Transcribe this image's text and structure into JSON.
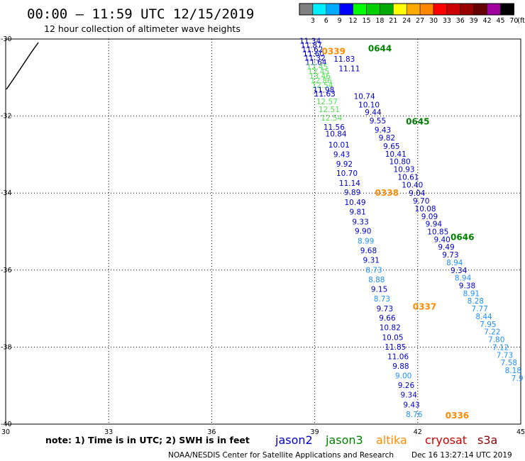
{
  "header": {
    "title": "00:00 — 11:59 UTC 12/15/2019",
    "subtitle": "12 hour collection of altimeter wave heights"
  },
  "color_scale": {
    "colors": [
      "#808080",
      "#00f0ff",
      "#00aaff",
      "#0000ff",
      "#00ff00",
      "#00d000",
      "#00aa00",
      "#ffff00",
      "#ffaa00",
      "#ff8800",
      "#ff0000",
      "#cc0000",
      "#990000",
      "#660000",
      "#a000a0",
      "#000000"
    ],
    "labels": [
      "3",
      "6",
      "9",
      "12",
      "15",
      "18",
      "21",
      "24",
      "27",
      "30",
      "33",
      "36",
      "39",
      "42",
      "45",
      "70"
    ],
    "unit": "(ft)"
  },
  "map": {
    "lon_range": [
      30,
      45
    ],
    "lat_range": [
      -40,
      -30
    ],
    "x_ticks": [
      "30",
      "33",
      "36",
      "39",
      "42",
      "45"
    ],
    "y_ticks": [
      "-30",
      "-32",
      "-34",
      "-36",
      "-38",
      "-40"
    ],
    "grid": true
  },
  "tracks": {
    "A": [
      {
        "lat": -30.05,
        "v": "11.34",
        "c": "#0000cd"
      },
      {
        "lat": -30.16,
        "v": "11.87",
        "c": "#0000cd"
      },
      {
        "lat": -30.27,
        "v": "11.62",
        "c": "#0000cd"
      },
      {
        "lat": -30.38,
        "v": "11.60",
        "c": "#0000cd"
      },
      {
        "lat": -30.49,
        "v": "11.32",
        "c": "#0000cd"
      },
      {
        "lat": -30.6,
        "v": "11.64",
        "c": "#0000cd"
      },
      {
        "lat": -30.72,
        "v": "12.45",
        "c": "#55e055"
      },
      {
        "lat": -30.84,
        "v": "12.45",
        "c": "#55e055"
      },
      {
        "lat": -30.96,
        "v": "13.46",
        "c": "#55e055"
      },
      {
        "lat": -31.08,
        "v": "12.86",
        "c": "#55e055"
      },
      {
        "lat": -31.2,
        "v": "12.54",
        "c": "#55e055"
      },
      {
        "lat": -31.32,
        "v": "11.98",
        "c": "#0000cd"
      },
      {
        "lat": -31.42,
        "v": "11.63",
        "c": "#0000cd"
      },
      {
        "lat": -31.62,
        "v": "12.57",
        "c": "#55e055"
      },
      {
        "lat": -31.82,
        "v": "12.51",
        "c": "#55e055"
      },
      {
        "lat": -32.04,
        "v": "12.54",
        "c": "#55e055"
      },
      {
        "lat": -32.28,
        "v": "11.56",
        "c": "#0000cd"
      },
      {
        "lat": -32.46,
        "v": "10.84",
        "c": "#0000cd"
      },
      {
        "lat": -32.74,
        "v": "10.01",
        "c": "#0000cd"
      },
      {
        "lat": -32.99,
        "v": "9.43",
        "c": "#0000cd"
      },
      {
        "lat": -33.24,
        "v": "9.92",
        "c": "#0000cd"
      },
      {
        "lat": -33.48,
        "v": "10.70",
        "c": "#0000cd"
      },
      {
        "lat": -33.74,
        "v": "11.14",
        "c": "#0000cd"
      },
      {
        "lat": -33.98,
        "v": "9.89",
        "c": "#0000cd"
      },
      {
        "lat": -34.24,
        "v": "10.49",
        "c": "#0000cd"
      },
      {
        "lat": -34.48,
        "v": "9.81",
        "c": "#0000cd"
      },
      {
        "lat": -34.74,
        "v": "9.33",
        "c": "#0000cd"
      },
      {
        "lat": -34.98,
        "v": "9.90",
        "c": "#0000cd"
      },
      {
        "lat": -35.24,
        "v": "8.99",
        "c": "#1e90ff"
      },
      {
        "lat": -35.49,
        "v": "9.68",
        "c": "#0000cd"
      },
      {
        "lat": -35.74,
        "v": "9.31",
        "c": "#0000cd"
      },
      {
        "lat": -35.99,
        "v": "8.73",
        "c": "#1e90ff"
      },
      {
        "lat": -36.24,
        "v": "8.88",
        "c": "#1e90ff"
      },
      {
        "lat": -36.49,
        "v": "9.15",
        "c": "#0000cd"
      },
      {
        "lat": -36.74,
        "v": "8.73",
        "c": "#1e90ff"
      },
      {
        "lat": -37.0,
        "v": "9.73",
        "c": "#0000cd"
      },
      {
        "lat": -37.24,
        "v": "9.66",
        "c": "#0000cd"
      },
      {
        "lat": -37.49,
        "v": "10.82",
        "c": "#0000cd"
      },
      {
        "lat": -37.74,
        "v": "10.05",
        "c": "#0000cd"
      },
      {
        "lat": -37.99,
        "v": "11.85",
        "c": "#0000cd"
      },
      {
        "lat": -38.24,
        "v": "11.06",
        "c": "#0000cd"
      },
      {
        "lat": -38.49,
        "v": "9.88",
        "c": "#0000cd"
      },
      {
        "lat": -38.74,
        "v": "9.00",
        "c": "#1e90ff"
      },
      {
        "lat": -38.99,
        "v": "9.26",
        "c": "#0000cd"
      },
      {
        "lat": -39.24,
        "v": "9.34",
        "c": "#0000cd"
      },
      {
        "lat": -39.49,
        "v": "9.43",
        "c": "#0000cd"
      },
      {
        "lat": -39.74,
        "v": "8.76",
        "c": "#1e90ff"
      }
    ],
    "B": [
      {
        "lat": -30.52,
        "v": "11.83",
        "c": "#0000cd"
      },
      {
        "lat": -30.76,
        "v": "11.11",
        "c": "#0000cd"
      },
      {
        "lat": -31.48,
        "v": "10.74",
        "c": "#0000cd"
      },
      {
        "lat": -31.7,
        "v": "10.10",
        "c": "#0000cd"
      },
      {
        "lat": -31.9,
        "v": "9.44",
        "c": "#0000cd"
      },
      {
        "lat": -32.12,
        "v": "9.55",
        "c": "#0000cd"
      },
      {
        "lat": -32.36,
        "v": "9.43",
        "c": "#0000cd"
      },
      {
        "lat": -32.56,
        "v": "9.82",
        "c": "#0000cd"
      },
      {
        "lat": -32.78,
        "v": "9.65",
        "c": "#0000cd"
      },
      {
        "lat": -32.98,
        "v": "10.41",
        "c": "#0000cd"
      },
      {
        "lat": -33.18,
        "v": "10.80",
        "c": "#0000cd"
      },
      {
        "lat": -33.38,
        "v": "10.93",
        "c": "#0000cd"
      },
      {
        "lat": -33.58,
        "v": "10.61",
        "c": "#0000cd"
      },
      {
        "lat": -33.78,
        "v": "10.40",
        "c": "#0000cd"
      },
      {
        "lat": -34.0,
        "v": "9.04",
        "c": "#0000cd"
      },
      {
        "lat": -34.2,
        "v": "9.70",
        "c": "#0000cd"
      },
      {
        "lat": -34.4,
        "v": "10.08",
        "c": "#0000cd"
      },
      {
        "lat": -34.6,
        "v": "9.09",
        "c": "#0000cd"
      },
      {
        "lat": -34.8,
        "v": "9.94",
        "c": "#0000cd"
      },
      {
        "lat": -35.0,
        "v": "10.85",
        "c": "#0000cd"
      },
      {
        "lat": -35.2,
        "v": "9.40",
        "c": "#0000cd"
      },
      {
        "lat": -35.4,
        "v": "9.49",
        "c": "#0000cd"
      },
      {
        "lat": -35.6,
        "v": "9.73",
        "c": "#0000cd"
      },
      {
        "lat": -35.8,
        "v": "8.94",
        "c": "#1e90ff"
      },
      {
        "lat": -36.0,
        "v": "9.34",
        "c": "#0000cd"
      },
      {
        "lat": -36.2,
        "v": "8.94",
        "c": "#1e90ff"
      },
      {
        "lat": -36.4,
        "v": "9.38",
        "c": "#0000cd"
      },
      {
        "lat": -36.6,
        "v": "8.91",
        "c": "#1e90ff"
      },
      {
        "lat": -36.8,
        "v": "8.28",
        "c": "#1e90ff"
      },
      {
        "lat": -37.0,
        "v": "7.77",
        "c": "#1e90ff"
      },
      {
        "lat": -37.2,
        "v": "8.44",
        "c": "#1e90ff"
      },
      {
        "lat": -37.4,
        "v": "7.95",
        "c": "#1e90ff"
      },
      {
        "lat": -37.6,
        "v": "7.22",
        "c": "#1e90ff"
      },
      {
        "lat": -37.8,
        "v": "7.80",
        "c": "#1e90ff"
      },
      {
        "lat": -38.0,
        "v": "7.12",
        "c": "#1e90ff"
      },
      {
        "lat": -38.2,
        "v": "7.73",
        "c": "#1e90ff"
      },
      {
        "lat": -38.4,
        "v": "7.58",
        "c": "#1e90ff"
      },
      {
        "lat": -38.6,
        "v": "8.18",
        "c": "#1e90ff"
      },
      {
        "lat": -38.8,
        "v": "7.9",
        "c": "#1e90ff"
      }
    ]
  },
  "time_labels": [
    {
      "text": "0644",
      "lon": 40.9,
      "lat": -30.25,
      "c": "#008000"
    },
    {
      "text": "0339",
      "lon": 39.55,
      "lat": -30.32,
      "c": "#ff8c00"
    },
    {
      "text": "0645",
      "lon": 42.0,
      "lat": -32.15,
      "c": "#008000"
    },
    {
      "text": "0338",
      "lon": 41.1,
      "lat": -34.0,
      "c": "#ff8c00"
    },
    {
      "text": "0646",
      "lon": 43.3,
      "lat": -35.15,
      "c": "#008000"
    },
    {
      "text": "0337",
      "lon": 42.2,
      "lat": -36.95,
      "c": "#ff8c00"
    },
    {
      "text": "0336",
      "lon": 43.15,
      "lat": -39.78,
      "c": "#ff8c00"
    }
  ],
  "legend": {
    "note": "note:  1) Time is in UTC;  2) SWH is in feet",
    "satellites": [
      {
        "name": "jason2",
        "color": "#0000cd"
      },
      {
        "name": "jason3",
        "color": "#008000"
      },
      {
        "name": "altika",
        "color": "#ff8c00"
      },
      {
        "name": "cryosat",
        "color": "#cc0000"
      },
      {
        "name": "s3a",
        "color": "#8b0000"
      }
    ]
  },
  "footer": {
    "credit": "NOAA/NESDIS Center for Satellite Applications and Research",
    "timestamp": "Dec 16 13:27:14 UTC 2019"
  }
}
